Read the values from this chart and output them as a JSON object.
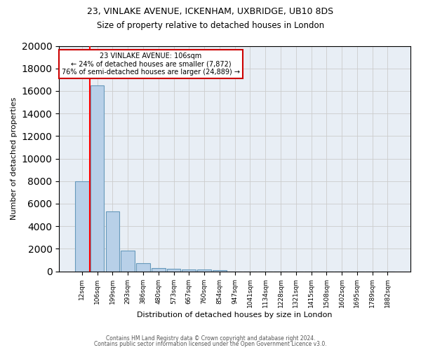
{
  "title_line1": "23, VINLAKE AVENUE, ICKENHAM, UXBRIDGE, UB10 8DS",
  "title_line2": "Size of property relative to detached houses in London",
  "xlabel": "Distribution of detached houses by size in London",
  "ylabel": "Number of detached properties",
  "categories": [
    "12sqm",
    "106sqm",
    "199sqm",
    "293sqm",
    "386sqm",
    "480sqm",
    "573sqm",
    "667sqm",
    "760sqm",
    "854sqm",
    "947sqm",
    "1041sqm",
    "1134sqm",
    "1228sqm",
    "1321sqm",
    "1415sqm",
    "1508sqm",
    "1602sqm",
    "1695sqm",
    "1789sqm",
    "1882sqm"
  ],
  "values": [
    8000,
    16500,
    5300,
    1850,
    700,
    300,
    220,
    190,
    160,
    130,
    0,
    0,
    0,
    0,
    0,
    0,
    0,
    0,
    0,
    0,
    0
  ],
  "bar_color": "#b8d0e8",
  "bar_edge_color": "#6699bb",
  "red_line_index": 1,
  "annotation_line1": "23 VINLAKE AVENUE: 106sqm",
  "annotation_line2": "← 24% of detached houses are smaller (7,872)",
  "annotation_line3": "76% of semi-detached houses are larger (24,889) →",
  "annotation_box_color": "#ffffff",
  "annotation_border_color": "#cc0000",
  "ylim": [
    0,
    20000
  ],
  "yticks": [
    0,
    2000,
    4000,
    6000,
    8000,
    10000,
    12000,
    14000,
    16000,
    18000,
    20000
  ],
  "grid_color": "#cccccc",
  "background_color": "#e8eef5",
  "footer_line1": "Contains HM Land Registry data © Crown copyright and database right 2024.",
  "footer_line2": "Contains public sector information licensed under the Open Government Licence v3.0."
}
